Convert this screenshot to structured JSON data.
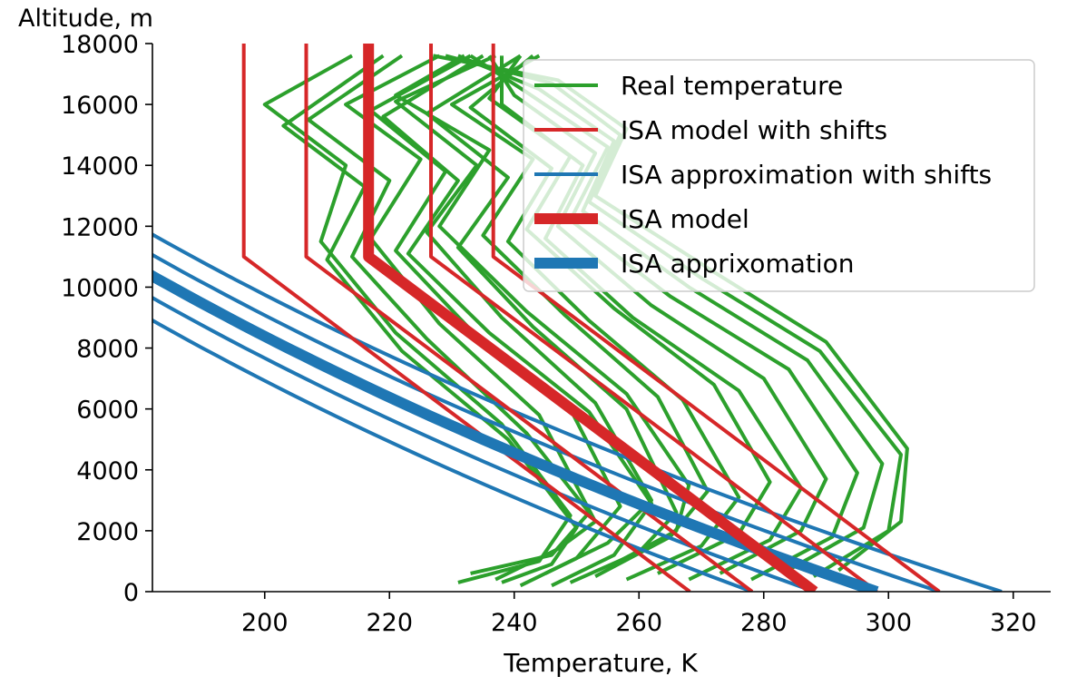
{
  "chart_data": {
    "type": "line",
    "title": "",
    "xlabel": "Temperature, K",
    "ylabel": "Altitude, m",
    "xlim": [
      182,
      326
    ],
    "ylim": [
      0,
      18000
    ],
    "xticks": [
      200,
      220,
      240,
      260,
      280,
      300,
      320
    ],
    "yticks": [
      0,
      2000,
      4000,
      6000,
      8000,
      10000,
      12000,
      14000,
      16000,
      18000
    ],
    "grid": false,
    "legend_position": "top-right",
    "colors": {
      "real": "#2ca02c",
      "isa_model": "#d62728",
      "isa_approx": "#1f77b4"
    },
    "legend": [
      {
        "label": "Real temperature",
        "color": "#2ca02c",
        "style": "thin"
      },
      {
        "label": "ISA model with shifts",
        "color": "#d62728",
        "style": "thin"
      },
      {
        "label": "ISA approximation with shifts",
        "color": "#1f77b4",
        "style": "thin"
      },
      {
        "label": "ISA model",
        "color": "#d62728",
        "style": "thick"
      },
      {
        "label": "ISA apprixomation",
        "color": "#1f77b4",
        "style": "thick"
      }
    ],
    "isa_model": {
      "surface_temperature": 288.15,
      "lapse_rate_per_m": 0.0065,
      "tropopause_altitude": 11000,
      "top_altitude": 18000,
      "shifts": [
        -20,
        -10,
        0,
        10,
        20
      ]
    },
    "isa_approximation": {
      "surface_temperature": 298.15,
      "scale_height": 21000,
      "shifts": [
        -20,
        -10,
        0,
        10,
        20
      ]
    },
    "real_temperature_series": [
      {
        "points": [
          [
            231,
            300
          ],
          [
            244,
            1000
          ],
          [
            249,
            2500
          ],
          [
            238,
            5500
          ],
          [
            221,
            8500
          ],
          [
            209,
            11500
          ],
          [
            213,
            14000
          ],
          [
            200,
            16000
          ],
          [
            214,
            17600
          ]
        ]
      },
      {
        "points": [
          [
            233,
            600
          ],
          [
            246,
            1200
          ],
          [
            252,
            2600
          ],
          [
            242,
            5200
          ],
          [
            226,
            8300
          ],
          [
            214,
            11000
          ],
          [
            220,
            13500
          ],
          [
            207,
            15500
          ],
          [
            222,
            17600
          ]
        ]
      },
      {
        "points": [
          [
            237,
            400
          ],
          [
            247,
            1400
          ],
          [
            253,
            2300
          ],
          [
            244,
            5800
          ],
          [
            228,
            8800
          ],
          [
            217,
            11600
          ],
          [
            225,
            14200
          ],
          [
            213,
            16000
          ],
          [
            228,
            17600
          ]
        ]
      },
      {
        "points": [
          [
            241,
            200
          ],
          [
            250,
            1100
          ],
          [
            257,
            2800
          ],
          [
            249,
            6000
          ],
          [
            233,
            8600
          ],
          [
            221,
            11200
          ],
          [
            229,
            13800
          ],
          [
            217,
            15800
          ],
          [
            233,
            17600
          ]
        ]
      },
      {
        "points": [
          [
            245,
            600
          ],
          [
            255,
            1600
          ],
          [
            262,
            3000
          ],
          [
            253,
            6200
          ],
          [
            238,
            9000
          ],
          [
            226,
            11800
          ],
          [
            234,
            14000
          ],
          [
            221,
            16100
          ],
          [
            237,
            17600
          ]
        ]
      },
      {
        "points": [
          [
            249,
            300
          ],
          [
            260,
            1300
          ],
          [
            266,
            2600
          ],
          [
            258,
            6000
          ],
          [
            243,
            8700
          ],
          [
            231,
            11300
          ],
          [
            239,
            13600
          ],
          [
            226,
            15700
          ],
          [
            241,
            17600
          ]
        ]
      },
      {
        "points": [
          [
            253,
            500
          ],
          [
            265,
            1800
          ],
          [
            271,
            3300
          ],
          [
            263,
            6400
          ],
          [
            248,
            9100
          ],
          [
            235,
            11700
          ],
          [
            243,
            14200
          ],
          [
            230,
            16000
          ],
          [
            244,
            17600
          ]
        ]
      },
      {
        "points": [
          [
            258,
            400
          ],
          [
            270,
            1500
          ],
          [
            276,
            3100
          ],
          [
            267,
            6300
          ],
          [
            252,
            8900
          ],
          [
            239,
            11500
          ],
          [
            246,
            13900
          ],
          [
            233,
            15900
          ],
          [
            243,
            17600
          ]
        ]
      },
      {
        "points": [
          [
            263,
            600
          ],
          [
            276,
            1900
          ],
          [
            281,
            3600
          ],
          [
            272,
            6800
          ],
          [
            256,
            9300
          ],
          [
            242,
            11900
          ],
          [
            249,
            14300
          ],
          [
            236,
            16200
          ],
          [
            241,
            17600
          ]
        ]
      },
      {
        "points": [
          [
            268,
            400
          ],
          [
            281,
            1700
          ],
          [
            286,
            3400
          ],
          [
            276,
            6600
          ],
          [
            259,
            9000
          ],
          [
            245,
            11600
          ],
          [
            251,
            14000
          ],
          [
            238,
            16000
          ],
          [
            238,
            17600
          ]
        ]
      },
      {
        "points": [
          [
            273,
            600
          ],
          [
            286,
            2000
          ],
          [
            290,
            3700
          ],
          [
            280,
            7000
          ],
          [
            262,
            9400
          ],
          [
            247,
            12000
          ],
          [
            253,
            14400
          ],
          [
            240,
            16300
          ],
          [
            236,
            17600
          ]
        ]
      },
      {
        "points": [
          [
            278,
            400
          ],
          [
            291,
            1800
          ],
          [
            295,
            3900
          ],
          [
            284,
            7300
          ],
          [
            265,
            9700
          ],
          [
            249,
            12200
          ],
          [
            255,
            14600
          ],
          [
            242,
            16400
          ],
          [
            233,
            17600
          ]
        ]
      },
      {
        "points": [
          [
            283,
            600
          ],
          [
            296,
            2100
          ],
          [
            299,
            4200
          ],
          [
            287,
            7600
          ],
          [
            268,
            10000
          ],
          [
            251,
            12500
          ],
          [
            256,
            14800
          ],
          [
            244,
            16500
          ],
          [
            231,
            17600
          ]
        ]
      },
      {
        "points": [
          [
            288,
            500
          ],
          [
            300,
            2000
          ],
          [
            302,
            4500
          ],
          [
            289,
            7900
          ],
          [
            270,
            10300
          ],
          [
            252,
            12800
          ],
          [
            257,
            15000
          ],
          [
            246,
            16700
          ],
          [
            229,
            17600
          ]
        ]
      },
      {
        "points": [
          [
            292,
            700
          ],
          [
            302,
            2300
          ],
          [
            303,
            4700
          ],
          [
            290,
            8200
          ],
          [
            272,
            10500
          ],
          [
            253,
            13000
          ],
          [
            258,
            15200
          ],
          [
            247,
            16800
          ],
          [
            227,
            17600
          ]
        ]
      },
      {
        "points": [
          [
            255,
            800
          ],
          [
            266,
            2000
          ],
          [
            268,
            3500
          ],
          [
            258,
            6500
          ],
          [
            242,
            9200
          ],
          [
            228,
            12000
          ],
          [
            236,
            14500
          ],
          [
            221,
            16300
          ],
          [
            232,
            17600
          ]
        ]
      },
      {
        "points": [
          [
            238,
            300
          ],
          [
            246,
            900
          ],
          [
            250,
            2100
          ],
          [
            239,
            5000
          ],
          [
            222,
            7900
          ],
          [
            210,
            10900
          ],
          [
            216,
            13300
          ],
          [
            203,
            15300
          ],
          [
            219,
            17600
          ]
        ]
      },
      {
        "points": [
          [
            246,
            200
          ],
          [
            256,
            1200
          ],
          [
            262,
            2900
          ],
          [
            252,
            5900
          ],
          [
            236,
            8500
          ],
          [
            223,
            11100
          ],
          [
            231,
            13500
          ],
          [
            219,
            15600
          ],
          [
            235,
            17600
          ]
        ]
      }
    ]
  }
}
